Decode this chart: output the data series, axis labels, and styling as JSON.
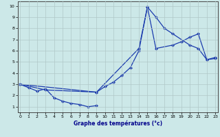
{
  "xlabel": "Graphe des températures (°c)",
  "bg_color": "#cce8e8",
  "grid_color": "#b0c8c8",
  "line_color": "#1a3aad",
  "xlim": [
    -0.3,
    23.3
  ],
  "ylim": [
    0.5,
    10.4
  ],
  "xticks": [
    0,
    1,
    2,
    3,
    4,
    5,
    6,
    7,
    8,
    9,
    10,
    11,
    12,
    13,
    14,
    15,
    16,
    17,
    18,
    19,
    20,
    21,
    22,
    23
  ],
  "yticks": [
    1,
    2,
    3,
    4,
    5,
    6,
    7,
    8,
    9,
    10
  ],
  "line1_x": [
    0,
    1,
    2,
    3,
    4,
    5,
    6,
    7,
    8,
    9
  ],
  "line1_y": [
    3.0,
    2.7,
    2.4,
    2.6,
    1.8,
    1.5,
    1.3,
    1.2,
    1.0,
    1.1
  ],
  "line2_x": [
    0,
    3,
    9,
    14,
    15,
    16,
    17,
    18,
    20,
    21,
    22,
    23
  ],
  "line2_y": [
    3.0,
    2.5,
    2.3,
    6.2,
    9.9,
    9.0,
    8.0,
    7.5,
    6.5,
    6.2,
    5.2,
    5.3
  ],
  "line3_x": [
    0,
    9,
    10,
    11,
    12,
    13,
    14,
    15,
    16,
    18,
    19,
    20,
    21,
    22,
    23
  ],
  "line3_y": [
    3.0,
    2.3,
    2.8,
    3.2,
    3.8,
    4.5,
    6.0,
    9.9,
    6.2,
    6.5,
    6.8,
    7.2,
    7.5,
    5.2,
    5.4
  ],
  "marker_size": 2,
  "linewidth": 0.9
}
